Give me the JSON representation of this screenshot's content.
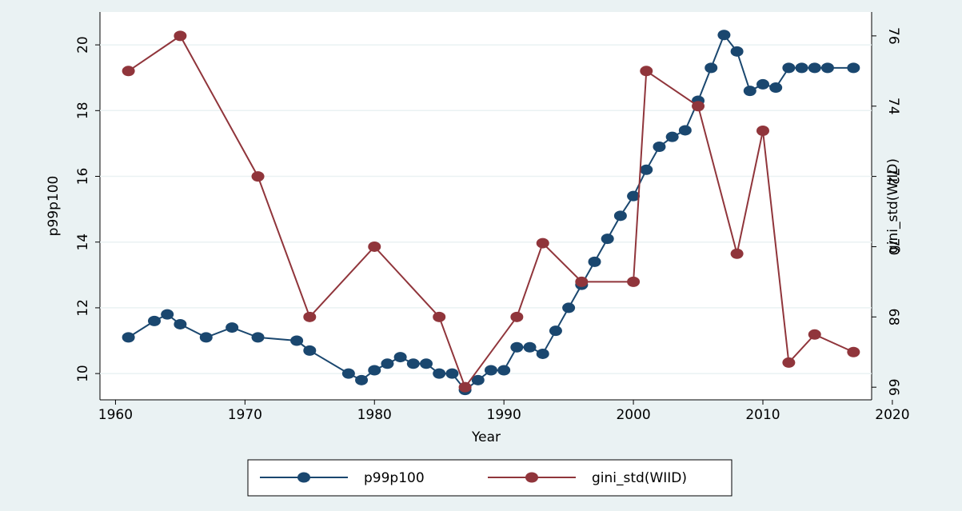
{
  "chart_data": {
    "type": "line",
    "xlabel": "Year",
    "ylabel": "p99p100",
    "y2label": "gini_std(WIID)",
    "xlim": [
      1958.8,
      2018.4
    ],
    "xticks": [
      1960,
      1970,
      1980,
      1990,
      2000,
      2010,
      2020
    ],
    "ylim": [
      9.2,
      21.0
    ],
    "yticks": [
      10,
      12,
      14,
      16,
      18,
      20
    ],
    "y2lim": [
      65.64,
      76.68
    ],
    "y2ticks": [
      66,
      68,
      70,
      72,
      74,
      76
    ],
    "grid": true,
    "legend": "bottom",
    "series": [
      {
        "name": "p99p100",
        "color": "#1a476f",
        "x": [
          1961,
          1963,
          1964,
          1965,
          1967,
          1969,
          1971,
          1974,
          1975,
          1978,
          1979,
          1980,
          1981,
          1982,
          1983,
          1984,
          1985,
          1986,
          1987,
          1988,
          1989,
          1990,
          1991,
          1992,
          1993,
          1994,
          1995,
          1996,
          1997,
          1998,
          1999,
          2000,
          2001,
          2002,
          2003,
          2004,
          2005,
          2006,
          2007,
          2008,
          2009,
          2010,
          2011,
          2012,
          2013,
          2014,
          2015,
          2017
        ],
        "values": [
          11.1,
          11.6,
          11.8,
          11.5,
          11.1,
          11.4,
          11.1,
          11.0,
          10.7,
          10.0,
          9.8,
          10.1,
          10.3,
          10.5,
          10.3,
          10.3,
          10.0,
          10.0,
          9.5,
          9.8,
          10.1,
          10.1,
          10.8,
          10.8,
          10.6,
          11.3,
          12.0,
          12.7,
          13.4,
          14.1,
          14.8,
          15.4,
          16.2,
          16.9,
          17.2,
          17.4,
          18.3,
          19.3,
          20.3,
          19.8,
          18.6,
          18.8,
          18.7,
          19.3,
          19.3,
          19.3,
          19.3,
          19.3
        ]
      },
      {
        "name": "gini_std(WIID)",
        "color": "#90353b",
        "axis": "y2",
        "x": [
          1961,
          1965,
          1971,
          1975,
          1980,
          1985,
          1987,
          1991,
          1993,
          1996,
          2000,
          2001,
          2005,
          2008,
          2010,
          2012,
          2014,
          2017
        ],
        "values": [
          75,
          76,
          72,
          68,
          70,
          68,
          66,
          68,
          70.1,
          69,
          69,
          75,
          74,
          69.8,
          73.3,
          66.7,
          67.5,
          67
        ]
      }
    ]
  }
}
